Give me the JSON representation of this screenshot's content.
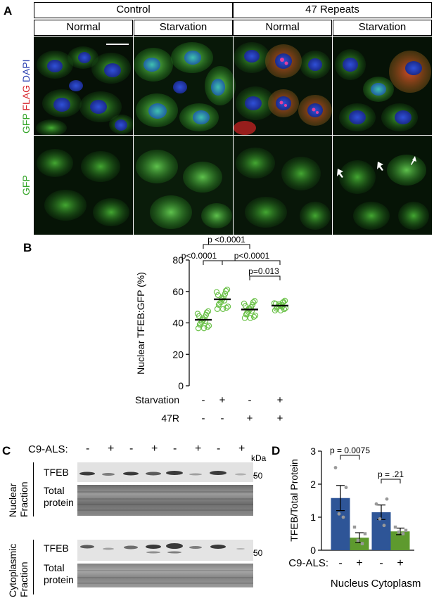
{
  "panel_a": {
    "letter": "A",
    "group_headers": [
      "Control",
      "47 Repeats"
    ],
    "condition_headers": [
      "Normal",
      "Starvation",
      "Normal",
      "Starvation"
    ],
    "row1_label": {
      "gfp": "GFP",
      "flag": "FLAG",
      "dapi": "DAPI"
    },
    "row2_label": "GFP",
    "colors": {
      "gfp": "#35a62a",
      "flag": "#d8252c",
      "dapi": "#2a3fb0"
    }
  },
  "panel_b": {
    "letter": "B",
    "pvalues": [
      "p <0.0001",
      "p<0.0001",
      "p<0.0001",
      "p=0.013"
    ],
    "row_labels": [
      "Starvation",
      "47R"
    ],
    "row_signs": [
      [
        "-",
        "+",
        "-",
        "+"
      ],
      [
        "-",
        "-",
        "+",
        "+"
      ]
    ],
    "chart_data": {
      "type": "scatter",
      "ylabel": "Nuclear TFEB:GFP (%)",
      "ylim": [
        0,
        80
      ],
      "yticks": [
        0,
        20,
        40,
        60,
        80
      ],
      "groups": [
        {
          "starvation": "-",
          "r47": "-",
          "mean": 42
        },
        {
          "starvation": "+",
          "r47": "-",
          "mean": 55
        },
        {
          "starvation": "-",
          "r47": "+",
          "mean": 48.5
        },
        {
          "starvation": "+",
          "r47": "+",
          "mean": 51
        }
      ],
      "color": "#6cc24a"
    }
  },
  "panel_c": {
    "letter": "C",
    "c9_label": "C9-ALS:",
    "c9_signs": [
      "-",
      "+",
      "-",
      "+",
      "-",
      "+",
      "-",
      "+"
    ],
    "kda_label": "kDa",
    "marker": "50",
    "nuclear_label": "Nuclear Fraction",
    "cyto_label": "Cytoplasmic Fraction",
    "tfeb_label": "TFEB",
    "total_label": "Total protein"
  },
  "panel_d": {
    "letter": "D",
    "pvalues": [
      "p = 0.0075",
      "p = .21"
    ],
    "c9_label": "C9-ALS:",
    "c9_signs": [
      "-",
      "+",
      "-",
      "+"
    ],
    "chart_data": {
      "type": "bar",
      "ylabel": "TFEB/Total Protein",
      "categories": [
        "Nucleus",
        "Cytoplasm"
      ],
      "ylim": [
        0,
        3
      ],
      "yticks": [
        0,
        1,
        2,
        3
      ],
      "series": [
        {
          "values": [
            1.58,
            1.15
          ],
          "errors": [
            0.38,
            0.22
          ],
          "color": "#2e5597",
          "points": [
            [
              2.5,
              1.1,
              1.0,
              1.9
            ],
            [
              1.4,
              0.95,
              0.75,
              1.55
            ]
          ]
        },
        {
          "values": [
            0.38,
            0.57
          ],
          "errors": [
            0.15,
            0.1
          ],
          "color": "#5e9a2e",
          "points": [
            [
              0.7,
              0.3,
              0.2,
              0.5
            ],
            [
              0.7,
              0.55,
              0.5,
              0.6
            ]
          ]
        }
      ]
    }
  }
}
